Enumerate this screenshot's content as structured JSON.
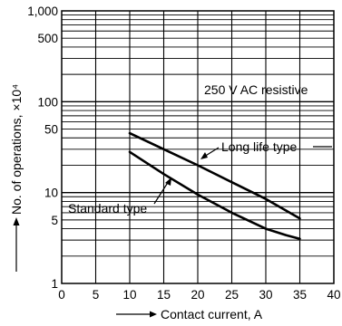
{
  "chart_data": {
    "type": "line",
    "xlabel": "Contact current, A",
    "ylabel": "No. of operations, ×10⁴",
    "annotation": "250 V AC resistive",
    "xlim": [
      0,
      40
    ],
    "ylim": [
      1,
      1000
    ],
    "y_scale": "log",
    "grid": true,
    "x_ticks": [
      0,
      5,
      10,
      15,
      20,
      25,
      30,
      35,
      40
    ],
    "x_tick_labels": [
      "0",
      "5",
      "10",
      "15",
      "20",
      "25",
      "30",
      "35",
      "40"
    ],
    "y_ticks": [
      1,
      5,
      10,
      50,
      100,
      500,
      1000
    ],
    "y_tick_labels": [
      "1",
      "5",
      "10",
      "50",
      "100",
      "500",
      "1,000"
    ],
    "series": [
      {
        "name": "Long life type",
        "x": [
          10,
          15,
          20,
          25,
          30,
          35
        ],
        "y": [
          45,
          30,
          20,
          13,
          8.5,
          5.2
        ]
      },
      {
        "name": "Standard type",
        "x": [
          10,
          15,
          20,
          25,
          30,
          33,
          35
        ],
        "y": [
          28,
          16,
          9.5,
          6,
          4,
          3.4,
          3.1
        ]
      }
    ]
  }
}
